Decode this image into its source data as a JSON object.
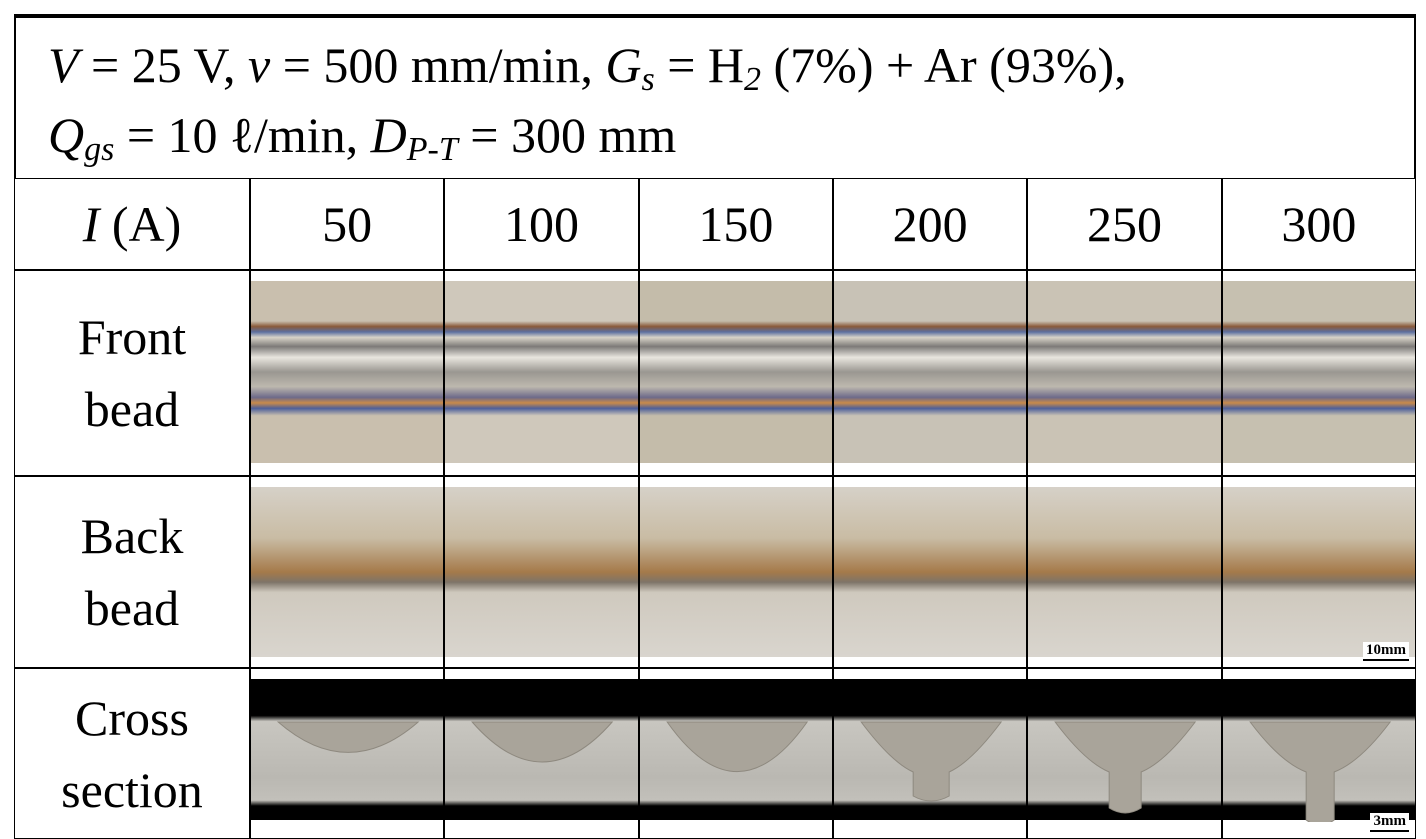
{
  "header": {
    "line1": [
      "V",
      " = 25 V, ",
      "v",
      " = 500 mm/min, ",
      "G",
      "s",
      " = H",
      "2",
      " (7%) + Ar (93%),"
    ],
    "line2": [
      "Q",
      "gs",
      " = 10 ℓ/min, ",
      "D",
      "P-T",
      " = 300 mm"
    ]
  },
  "table": {
    "corner": [
      "I",
      " (A)"
    ],
    "columns": [
      50,
      100,
      150,
      200,
      250,
      300
    ],
    "rows": [
      [
        "Front",
        "bead"
      ],
      [
        "Back",
        "bead"
      ],
      [
        "Cross",
        "section"
      ]
    ]
  },
  "scale_bars": {
    "back_bead": "10mm",
    "cross_section": "3mm"
  }
}
